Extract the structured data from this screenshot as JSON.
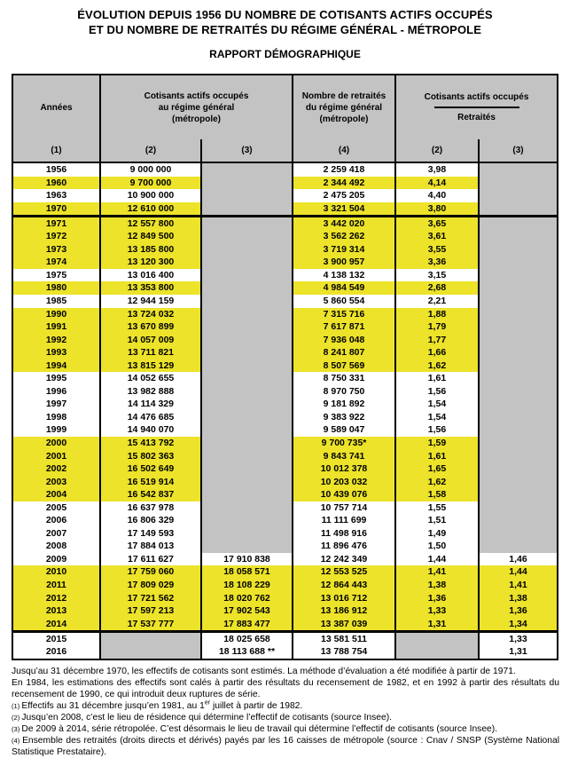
{
  "title": {
    "line1": "ÉVOLUTION DEPUIS 1956 DU NOMBRE DE COTISANTS ACTIFS OCCUPÉS",
    "line2": "ET DU NOMBRE DE RETRAITÉS DU RÉGIME GÉNÉRAL - MÉTROPOLE",
    "subtitle": "RAPPORT DÉMOGRAPHIQUE"
  },
  "colors": {
    "highlight_yellow": "#ece32a",
    "header_grey": "#c3c3c3",
    "border": "#000000",
    "background": "#ffffff"
  },
  "table": {
    "header": {
      "annees": "Années",
      "annees_num": "(1)",
      "cotisants_group": "Cotisants actifs occupés\nau régime général\n(métropole)",
      "cotisants_num2": "(2)",
      "cotisants_num3": "(3)",
      "retraites_group": "Nombre de retraités\ndu régime général\n(métropole)",
      "retraites_num": "(4)",
      "ratio_numerator": "Cotisants actifs occupés",
      "ratio_denominator": "Retraités",
      "ratio_num2": "(2)",
      "ratio_num3": "(3)"
    },
    "rows": [
      {
        "y": "1956",
        "c2": "9 000 000",
        "c3": null,
        "c4": "2 259 418",
        "r2": "3,98",
        "r3": null,
        "hl": false,
        "sep": false
      },
      {
        "y": "1960",
        "c2": "9 700 000",
        "c3": null,
        "c4": "2 344 492",
        "r2": "4,14",
        "r3": null,
        "hl": true,
        "sep": false
      },
      {
        "y": "1963",
        "c2": "10 900 000",
        "c3": null,
        "c4": "2 475 205",
        "r2": "4,40",
        "r3": null,
        "hl": false,
        "sep": false
      },
      {
        "y": "1970",
        "c2": "12 610 000",
        "c3": null,
        "c4": "3 321 504",
        "r2": "3,80",
        "r3": null,
        "hl": true,
        "sep": true
      },
      {
        "y": "1971",
        "c2": "12 557 800",
        "c3": null,
        "c4": "3 442 020",
        "r2": "3,65",
        "r3": null,
        "hl": true,
        "sep": false
      },
      {
        "y": "1972",
        "c2": "12 849 500",
        "c3": null,
        "c4": "3 562 262",
        "r2": "3,61",
        "r3": null,
        "hl": true,
        "sep": false
      },
      {
        "y": "1973",
        "c2": "13 185 800",
        "c3": null,
        "c4": "3 719 314",
        "r2": "3,55",
        "r3": null,
        "hl": true,
        "sep": false
      },
      {
        "y": "1974",
        "c2": "13 120 300",
        "c3": null,
        "c4": "3 900 957",
        "r2": "3,36",
        "r3": null,
        "hl": true,
        "sep": false
      },
      {
        "y": "1975",
        "c2": "13 016 400",
        "c3": null,
        "c4": "4 138 132",
        "r2": "3,15",
        "r3": null,
        "hl": false,
        "sep": false
      },
      {
        "y": "1980",
        "c2": "13 353 800",
        "c3": null,
        "c4": "4 984 549",
        "r2": "2,68",
        "r3": null,
        "hl": true,
        "sep": false
      },
      {
        "y": "1985",
        "c2": "12 944 159",
        "c3": null,
        "c4": "5 860 554",
        "r2": "2,21",
        "r3": null,
        "hl": false,
        "sep": false
      },
      {
        "y": "1990",
        "c2": "13 724 032",
        "c3": null,
        "c4": "7 315 716",
        "r2": "1,88",
        "r3": null,
        "hl": true,
        "sep": false
      },
      {
        "y": "1991",
        "c2": "13 670 899",
        "c3": null,
        "c4": "7 617 871",
        "r2": "1,79",
        "r3": null,
        "hl": true,
        "sep": false
      },
      {
        "y": "1992",
        "c2": "14 057 009",
        "c3": null,
        "c4": "7 936 048",
        "r2": "1,77",
        "r3": null,
        "hl": true,
        "sep": false
      },
      {
        "y": "1993",
        "c2": "13 711 821",
        "c3": null,
        "c4": "8 241 807",
        "r2": "1,66",
        "r3": null,
        "hl": true,
        "sep": false
      },
      {
        "y": "1994",
        "c2": "13 815 129",
        "c3": null,
        "c4": "8 507 569",
        "r2": "1,62",
        "r3": null,
        "hl": true,
        "sep": false
      },
      {
        "y": "1995",
        "c2": "14 052 655",
        "c3": null,
        "c4": "8 750 331",
        "r2": "1,61",
        "r3": null,
        "hl": false,
        "sep": false
      },
      {
        "y": "1996",
        "c2": "13 982 888",
        "c3": null,
        "c4": "8 970 750",
        "r2": "1,56",
        "r3": null,
        "hl": false,
        "sep": false
      },
      {
        "y": "1997",
        "c2": "14 114 329",
        "c3": null,
        "c4": "9 181 892",
        "r2": "1,54",
        "r3": null,
        "hl": false,
        "sep": false
      },
      {
        "y": "1998",
        "c2": "14 476 685",
        "c3": null,
        "c4": "9 383 922",
        "r2": "1,54",
        "r3": null,
        "hl": false,
        "sep": false
      },
      {
        "y": "1999",
        "c2": "14 940 070",
        "c3": null,
        "c4": "9 589 047",
        "r2": "1,56",
        "r3": null,
        "hl": false,
        "sep": false
      },
      {
        "y": "2000",
        "c2": "15 413 792",
        "c3": null,
        "c4": "9 700 735*",
        "r2": "1,59",
        "r3": null,
        "hl": true,
        "sep": false
      },
      {
        "y": "2001",
        "c2": "15 802 363",
        "c3": null,
        "c4": "9 843 741",
        "r2": "1,61",
        "r3": null,
        "hl": true,
        "sep": false
      },
      {
        "y": "2002",
        "c2": "16 502 649",
        "c3": null,
        "c4": "10 012 378",
        "r2": "1,65",
        "r3": null,
        "hl": true,
        "sep": false
      },
      {
        "y": "2003",
        "c2": "16 519 914",
        "c3": null,
        "c4": "10 203 032",
        "r2": "1,62",
        "r3": null,
        "hl": true,
        "sep": false
      },
      {
        "y": "2004",
        "c2": "16 542 837",
        "c3": null,
        "c4": "10 439 076",
        "r2": "1,58",
        "r3": null,
        "hl": true,
        "sep": false
      },
      {
        "y": "2005",
        "c2": "16 637 978",
        "c3": null,
        "c4": "10 757 714",
        "r2": "1,55",
        "r3": null,
        "hl": false,
        "sep": false
      },
      {
        "y": "2006",
        "c2": "16 806 329",
        "c3": null,
        "c4": "11 111 699",
        "r2": "1,51",
        "r3": null,
        "hl": false,
        "sep": false
      },
      {
        "y": "2007",
        "c2": "17 149 593",
        "c3": null,
        "c4": "11 498 916",
        "r2": "1,49",
        "r3": null,
        "hl": false,
        "sep": false
      },
      {
        "y": "2008",
        "c2": "17 884 013",
        "c3": null,
        "c4": "11 896 476",
        "r2": "1,50",
        "r3": null,
        "hl": false,
        "sep": false
      },
      {
        "y": "2009",
        "c2": "17 611 627",
        "c3": "17 910 838",
        "c4": "12 242 349",
        "r2": "1,44",
        "r3": "1,46",
        "hl": false,
        "sep": false
      },
      {
        "y": "2010",
        "c2": "17 759 060",
        "c3": "18 058 571",
        "c4": "12 553 525",
        "r2": "1,41",
        "r3": "1,44",
        "hl": true,
        "sep": false
      },
      {
        "y": "2011",
        "c2": "17 809 029",
        "c3": "18 108 229",
        "c4": "12 864 443",
        "r2": "1,38",
        "r3": "1,41",
        "hl": true,
        "sep": false
      },
      {
        "y": "2012",
        "c2": "17 721 562",
        "c3": "18 020 762",
        "c4": "13 016 712",
        "r2": "1,36",
        "r3": "1,38",
        "hl": true,
        "sep": false
      },
      {
        "y": "2013",
        "c2": "17 597 213",
        "c3": "17 902 543",
        "c4": "13 186 912",
        "r2": "1,33",
        "r3": "1,36",
        "hl": true,
        "sep": false
      },
      {
        "y": "2014",
        "c2": "17 537 777",
        "c3": "17 883 477",
        "c4": "13 387 039",
        "r2": "1,31",
        "r3": "1,34",
        "hl": true,
        "sep": true
      },
      {
        "y": "2015",
        "c2": null,
        "c3": "18 025 658",
        "c4": "13 581 511",
        "r2": null,
        "r3": "1,33",
        "hl": false,
        "sep": false
      },
      {
        "y": "2016",
        "c2": null,
        "c3": "18 113 688 **",
        "c4": "13 788 754",
        "r2": null,
        "r3": "1,31",
        "hl": false,
        "sep": false
      }
    ]
  },
  "footnotes": [
    {
      "text": "Jusqu’au 31 décembre 1970, les effectifs de cotisants sont estimés. La méthode d’évaluation a été modifiée à partir de 1971."
    },
    {
      "text": "En 1984, les estimations des effectifs sont calés à partir des résultats du recensement de 1982, et en 1992 à partir des résultats du recensement de 1990, ce qui introduit deux ruptures de série."
    },
    {
      "marker": "(1)",
      "pre": "Effectifs au 31 décembre jusqu’en 1981, au 1",
      "sup": "er",
      "post": " juillet à partir de 1982."
    },
    {
      "marker": "(2)",
      "text": "Jusqu’en 2008, c’est le lieu de résidence qui détermine l’effectif de cotisants (source Insee)."
    },
    {
      "marker": "(3)",
      "text": "De 2009 à 2014, série rétropolée. C’est désormais le lieu de travail qui détermine l’effectif de cotisants (source Insee)."
    },
    {
      "marker": "(4)",
      "text": "Ensemble des retraités (droits directs et dérivés) payés par les 16 caisses de métropole (source : Cnav / SNSP (Système National Statistique Prestataire)."
    }
  ]
}
